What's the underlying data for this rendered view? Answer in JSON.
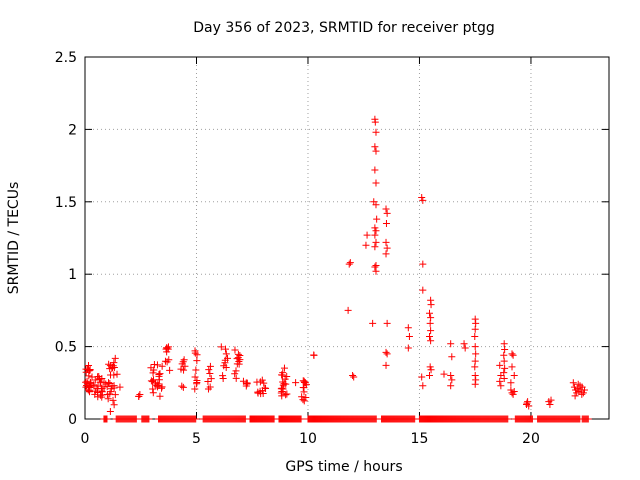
{
  "chart_data": {
    "type": "scatter",
    "title": "Day 356 of 2023, SRMTID for receiver ptgg",
    "xlabel": "GPS time / hours",
    "ylabel": "SRMTID / TECUs",
    "xlim": [
      0,
      23.5
    ],
    "ylim": [
      0,
      2.5
    ],
    "xticks": [
      0,
      5,
      10,
      15,
      20
    ],
    "xtick_labels": [
      "0",
      "5",
      "10",
      "15",
      "20"
    ],
    "yticks": [
      0,
      0.5,
      1,
      1.5,
      2,
      2.5
    ],
    "ytick_labels": [
      "0",
      "0.5",
      "1",
      "1.5",
      "2",
      "2.5"
    ],
    "grid": true,
    "marker": "+",
    "color": "#ff0000",
    "clusters": [
      {
        "x0": 0.0,
        "x1": 0.25,
        "yMin": 0.15,
        "yMax": 0.37,
        "n": 22
      },
      {
        "x0": 0.25,
        "x1": 1.0,
        "yMin": 0.15,
        "yMax": 0.3,
        "n": 30
      },
      {
        "x0": 1.0,
        "x1": 1.45,
        "yMin": 0.05,
        "yMax": 0.42,
        "n": 26
      },
      {
        "x0": 1.55,
        "x1": 1.6,
        "yMin": 0.22,
        "yMax": 0.25,
        "n": 1
      },
      {
        "x0": 2.4,
        "x1": 2.5,
        "yMin": 0.15,
        "yMax": 0.2,
        "n": 3
      },
      {
        "x0": 2.9,
        "x1": 3.5,
        "yMin": 0.15,
        "yMax": 0.38,
        "n": 24
      },
      {
        "x0": 3.6,
        "x1": 3.8,
        "yMin": 0.33,
        "yMax": 0.5,
        "n": 10
      },
      {
        "x0": 4.3,
        "x1": 4.5,
        "yMin": 0.2,
        "yMax": 0.42,
        "n": 8
      },
      {
        "x0": 4.9,
        "x1": 5.05,
        "yMin": 0.18,
        "yMax": 0.5,
        "n": 10
      },
      {
        "x0": 5.5,
        "x1": 5.7,
        "yMin": 0.2,
        "yMax": 0.38,
        "n": 7
      },
      {
        "x0": 6.1,
        "x1": 6.4,
        "yMin": 0.25,
        "yMax": 0.5,
        "n": 10
      },
      {
        "x0": 6.7,
        "x1": 6.95,
        "yMin": 0.28,
        "yMax": 0.48,
        "n": 12
      },
      {
        "x0": 7.1,
        "x1": 7.3,
        "yMin": 0.22,
        "yMax": 0.28,
        "n": 5
      },
      {
        "x0": 7.7,
        "x1": 8.1,
        "yMin": 0.17,
        "yMax": 0.27,
        "n": 12
      },
      {
        "x0": 8.8,
        "x1": 9.1,
        "yMin": 0.15,
        "yMax": 0.37,
        "n": 18
      },
      {
        "x0": 9.4,
        "x1": 9.45,
        "yMin": 0.25,
        "yMax": 0.27,
        "n": 1
      },
      {
        "x0": 9.7,
        "x1": 9.95,
        "yMin": 0.12,
        "yMax": 0.27,
        "n": 12
      },
      {
        "x0": 10.25,
        "x1": 10.3,
        "yMin": 0.42,
        "yMax": 0.46,
        "n": 2
      }
    ],
    "points": [
      [
        11.8,
        0.75
      ],
      [
        11.85,
        1.07
      ],
      [
        11.9,
        1.08
      ],
      [
        12.0,
        0.3
      ],
      [
        12.05,
        0.29
      ],
      [
        12.6,
        1.2
      ],
      [
        12.65,
        1.27
      ],
      [
        12.9,
        0.66
      ],
      [
        12.95,
        1.5
      ],
      [
        13.0,
        2.07
      ],
      [
        13.02,
        2.05
      ],
      [
        13.05,
        1.98
      ],
      [
        13.0,
        1.88
      ],
      [
        13.05,
        1.85
      ],
      [
        13.0,
        1.72
      ],
      [
        13.05,
        1.63
      ],
      [
        13.05,
        1.48
      ],
      [
        13.08,
        1.38
      ],
      [
        13.0,
        1.32
      ],
      [
        13.05,
        1.3
      ],
      [
        13.0,
        1.27
      ],
      [
        13.05,
        1.22
      ],
      [
        13.0,
        1.19
      ],
      [
        13.05,
        1.06
      ],
      [
        13.0,
        1.05
      ],
      [
        13.05,
        1.02
      ],
      [
        13.5,
        1.45
      ],
      [
        13.55,
        1.42
      ],
      [
        13.52,
        1.35
      ],
      [
        13.5,
        1.22
      ],
      [
        13.55,
        1.18
      ],
      [
        13.5,
        1.14
      ],
      [
        13.55,
        0.66
      ],
      [
        13.5,
        0.46
      ],
      [
        13.55,
        0.45
      ],
      [
        13.5,
        0.37
      ],
      [
        14.5,
        0.63
      ],
      [
        14.55,
        0.57
      ],
      [
        14.5,
        0.49
      ],
      [
        15.1,
        1.53
      ],
      [
        15.15,
        1.51
      ],
      [
        15.15,
        1.07
      ],
      [
        15.15,
        0.89
      ],
      [
        15.1,
        0.29
      ],
      [
        15.15,
        0.23
      ],
      [
        15.5,
        0.82
      ],
      [
        15.52,
        0.79
      ],
      [
        15.45,
        0.73
      ],
      [
        15.5,
        0.7
      ],
      [
        15.48,
        0.66
      ],
      [
        15.5,
        0.61
      ],
      [
        15.45,
        0.57
      ],
      [
        15.5,
        0.54
      ],
      [
        15.48,
        0.36
      ],
      [
        15.52,
        0.34
      ],
      [
        15.45,
        0.3
      ],
      [
        16.1,
        0.31
      ],
      [
        16.4,
        0.52
      ],
      [
        16.45,
        0.43
      ],
      [
        16.4,
        0.3
      ],
      [
        16.45,
        0.27
      ],
      [
        16.4,
        0.23
      ],
      [
        17.0,
        0.52
      ],
      [
        17.05,
        0.49
      ],
      [
        17.5,
        0.69
      ],
      [
        17.52,
        0.66
      ],
      [
        17.5,
        0.62
      ],
      [
        17.48,
        0.57
      ],
      [
        17.5,
        0.5
      ],
      [
        17.52,
        0.45
      ],
      [
        17.5,
        0.4
      ],
      [
        17.48,
        0.36
      ],
      [
        17.5,
        0.3
      ],
      [
        17.52,
        0.27
      ],
      [
        17.5,
        0.24
      ],
      [
        18.6,
        0.37
      ],
      [
        18.65,
        0.3
      ],
      [
        18.6,
        0.26
      ],
      [
        18.65,
        0.23
      ],
      [
        18.8,
        0.52
      ],
      [
        18.82,
        0.48
      ],
      [
        18.78,
        0.44
      ],
      [
        18.8,
        0.4
      ],
      [
        18.82,
        0.35
      ],
      [
        18.78,
        0.32
      ],
      [
        18.8,
        0.28
      ],
      [
        19.1,
        0.2
      ],
      [
        19.15,
        0.18
      ],
      [
        19.2,
        0.17
      ],
      [
        19.25,
        0.19
      ],
      [
        19.15,
        0.45
      ],
      [
        19.2,
        0.44
      ],
      [
        19.15,
        0.36
      ],
      [
        19.25,
        0.3
      ],
      [
        19.1,
        0.25
      ],
      [
        19.8,
        0.1
      ],
      [
        19.85,
        0.12
      ],
      [
        19.9,
        0.09
      ],
      [
        19.82,
        0.11
      ],
      [
        20.8,
        0.12
      ],
      [
        20.85,
        0.1
      ],
      [
        20.9,
        0.13
      ],
      [
        21.9,
        0.25
      ],
      [
        21.95,
        0.22
      ],
      [
        22.0,
        0.2
      ],
      [
        22.05,
        0.18
      ],
      [
        22.1,
        0.21
      ],
      [
        22.15,
        0.19
      ],
      [
        22.2,
        0.23
      ],
      [
        22.25,
        0.2
      ],
      [
        22.3,
        0.22
      ],
      [
        22.35,
        0.18
      ],
      [
        22.4,
        0.2
      ],
      [
        21.98,
        0.16
      ],
      [
        22.12,
        0.24
      ],
      [
        22.28,
        0.17
      ]
    ],
    "zero_segments": [
      [
        0.85,
        1.0
      ],
      [
        1.4,
        2.3
      ],
      [
        2.55,
        2.9
      ],
      [
        3.3,
        5.0
      ],
      [
        5.3,
        7.2
      ],
      [
        7.4,
        8.5
      ],
      [
        8.7,
        9.7
      ],
      [
        10.0,
        13.1
      ],
      [
        13.3,
        14.8
      ],
      [
        15.0,
        19.0
      ],
      [
        19.3,
        20.1
      ],
      [
        20.3,
        22.2
      ],
      [
        22.3,
        22.6
      ]
    ]
  }
}
